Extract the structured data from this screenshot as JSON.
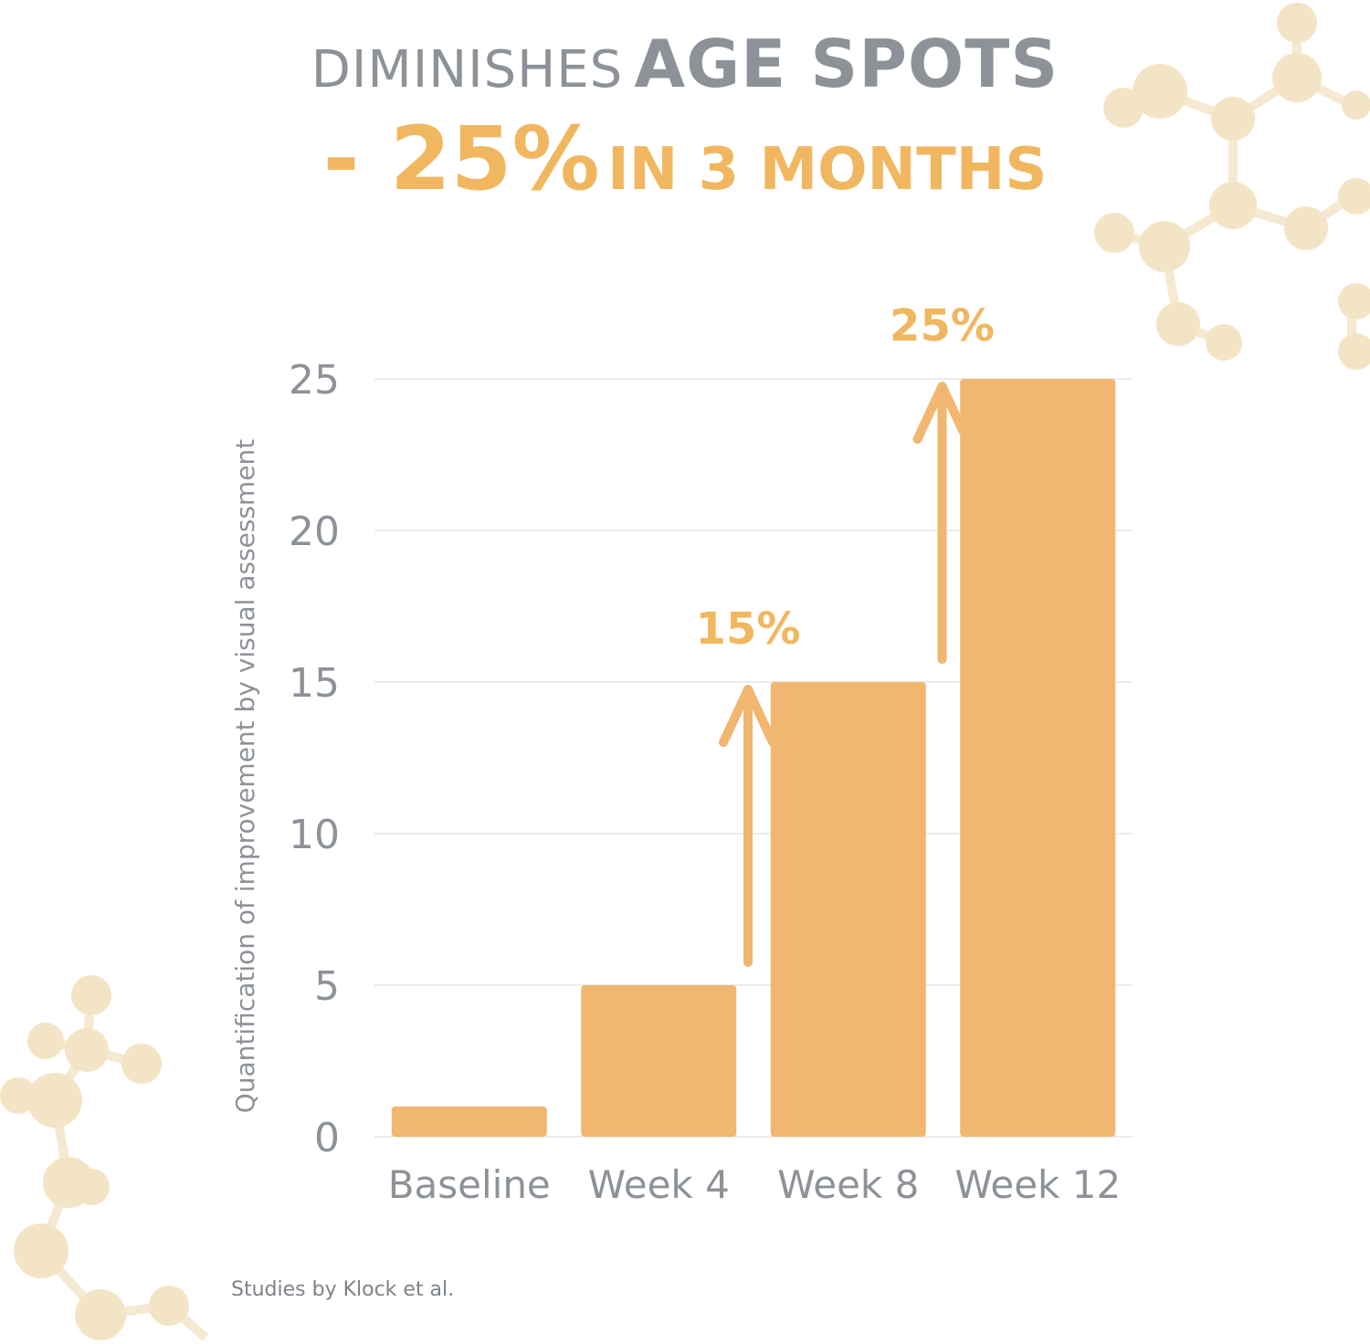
{
  "headline": {
    "line1_lead": "DIMINISHES",
    "line1_strong": "AGE SPOTS",
    "line2_big": "- 25%",
    "line2_small": "IN 3 MONTHS"
  },
  "chart_data": {
    "type": "bar",
    "categories": [
      "Baseline",
      "Week 4",
      "Week 8",
      "Week 12"
    ],
    "values": [
      1,
      5,
      15,
      25
    ],
    "ylabel": "Quantification of improvement by visual assessment",
    "yticks": [
      0,
      5,
      10,
      15,
      20,
      25
    ],
    "ylim": [
      0,
      25
    ],
    "grid": true,
    "bar_color": "#f1b770",
    "annotations": [
      {
        "label": "15%",
        "from_value": 5,
        "to_value": 15,
        "category_index": 1
      },
      {
        "label": "25%",
        "from_value": 15,
        "to_value": 25,
        "category_index": 2
      }
    ]
  },
  "footnote": "Studies by Klock et al.",
  "colors": {
    "accent": "#f1b760",
    "text_gray": "#8d9298",
    "molecule": "#f3e4c6"
  }
}
